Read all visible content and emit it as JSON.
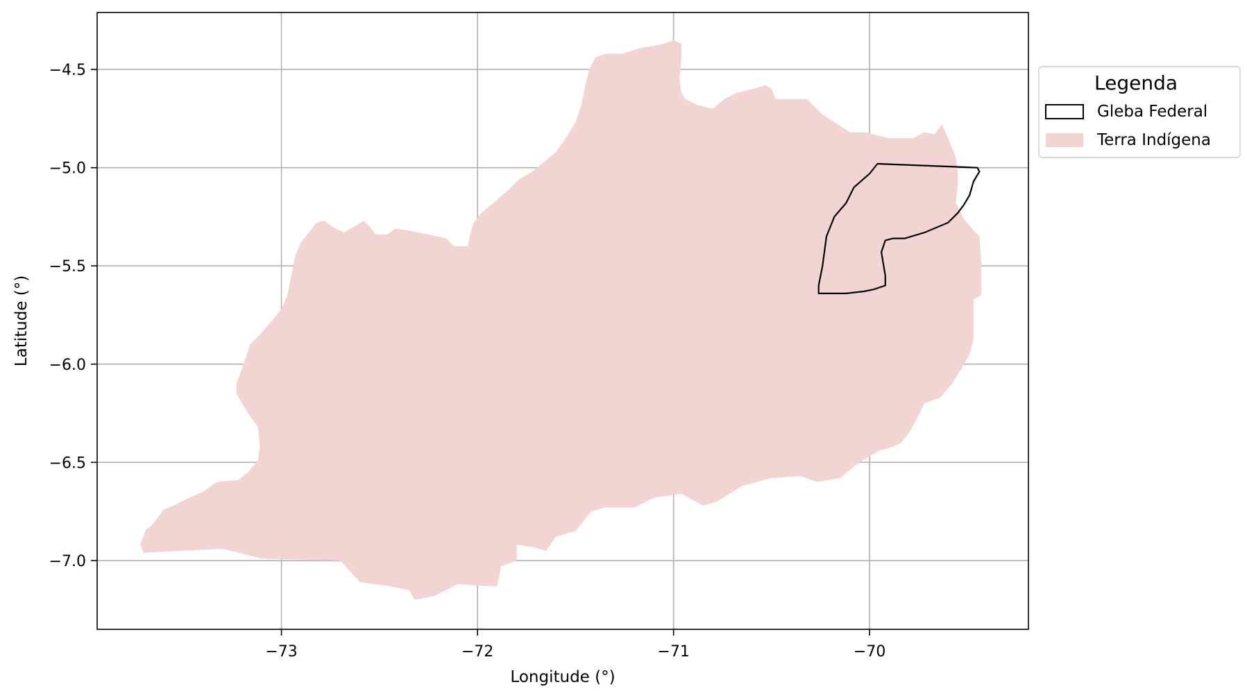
{
  "chart_data": {
    "type": "map",
    "xlabel": "Longitude (°)",
    "ylabel": "Latitude (°)",
    "xlim": [
      -73.94,
      -69.19
    ],
    "ylim": [
      -7.35,
      -4.21
    ],
    "grid": true,
    "x_ticks": [
      {
        "value": -73,
        "label": "−73"
      },
      {
        "value": -72,
        "label": "−72"
      },
      {
        "value": -71,
        "label": "−71"
      },
      {
        "value": -70,
        "label": "−70"
      }
    ],
    "y_ticks": [
      {
        "value": -4.5,
        "label": "−4.5"
      },
      {
        "value": -5.0,
        "label": "−5.0"
      },
      {
        "value": -5.5,
        "label": "−5.5"
      },
      {
        "value": -6.0,
        "label": "−6.0"
      },
      {
        "value": -6.5,
        "label": "−6.5"
      },
      {
        "value": -7.0,
        "label": "−7.0"
      }
    ],
    "legend": {
      "title": "Legenda",
      "placement": "outside-top-right",
      "entries": [
        {
          "label": "Gleba Federal",
          "style": "outline",
          "color": "#000000"
        },
        {
          "label": "Terra Indígena",
          "style": "fill",
          "color": "#f2d4d3"
        }
      ]
    },
    "layers": [
      {
        "name": "Terra Indígena",
        "fill": "#f2d4d3",
        "stroke": "none",
        "coordinates": [
          [
            -73.7,
            -6.97
          ],
          [
            -73.72,
            -6.92
          ],
          [
            -73.69,
            -6.84
          ],
          [
            -73.66,
            -6.82
          ],
          [
            -73.6,
            -6.74
          ],
          [
            -73.55,
            -6.72
          ],
          [
            -73.47,
            -6.68
          ],
          [
            -73.4,
            -6.65
          ],
          [
            -73.33,
            -6.6
          ],
          [
            -73.22,
            -6.59
          ],
          [
            -73.17,
            -6.55
          ],
          [
            -73.12,
            -6.49
          ],
          [
            -73.11,
            -6.42
          ],
          [
            -73.12,
            -6.32
          ],
          [
            -73.17,
            -6.25
          ],
          [
            -73.2,
            -6.2
          ],
          [
            -73.23,
            -6.15
          ],
          [
            -73.23,
            -6.1
          ],
          [
            -73.2,
            -6.02
          ],
          [
            -73.16,
            -5.9
          ],
          [
            -73.1,
            -5.84
          ],
          [
            -73.05,
            -5.78
          ],
          [
            -73.0,
            -5.72
          ],
          [
            -72.97,
            -5.65
          ],
          [
            -72.95,
            -5.55
          ],
          [
            -72.93,
            -5.45
          ],
          [
            -72.9,
            -5.38
          ],
          [
            -72.86,
            -5.33
          ],
          [
            -72.82,
            -5.28
          ],
          [
            -72.78,
            -5.27
          ],
          [
            -72.74,
            -5.3
          ],
          [
            -72.68,
            -5.33
          ],
          [
            -72.63,
            -5.3
          ],
          [
            -72.58,
            -5.27
          ],
          [
            -72.55,
            -5.3
          ],
          [
            -72.52,
            -5.34
          ],
          [
            -72.46,
            -5.34
          ],
          [
            -72.42,
            -5.31
          ],
          [
            -72.35,
            -5.32
          ],
          [
            -72.25,
            -5.34
          ],
          [
            -72.16,
            -5.36
          ],
          [
            -72.12,
            -5.4
          ],
          [
            -72.05,
            -5.4
          ],
          [
            -72.04,
            -5.35
          ],
          [
            -72.02,
            -5.28
          ],
          [
            -71.98,
            -5.23
          ],
          [
            -71.92,
            -5.18
          ],
          [
            -71.85,
            -5.12
          ],
          [
            -71.79,
            -5.06
          ],
          [
            -71.72,
            -5.02
          ],
          [
            -71.66,
            -4.97
          ],
          [
            -71.6,
            -4.92
          ],
          [
            -71.55,
            -4.85
          ],
          [
            -71.5,
            -4.77
          ],
          [
            -71.47,
            -4.68
          ],
          [
            -71.45,
            -4.58
          ],
          [
            -71.43,
            -4.5
          ],
          [
            -71.4,
            -4.44
          ],
          [
            -71.35,
            -4.42
          ],
          [
            -71.26,
            -4.42
          ],
          [
            -71.17,
            -4.39
          ],
          [
            -71.1,
            -4.38
          ],
          [
            -71.05,
            -4.37
          ],
          [
            -71.0,
            -4.35
          ],
          [
            -70.96,
            -4.37
          ],
          [
            -70.96,
            -4.45
          ],
          [
            -70.97,
            -4.55
          ],
          [
            -70.96,
            -4.62
          ],
          [
            -70.94,
            -4.65
          ],
          [
            -70.88,
            -4.68
          ],
          [
            -70.8,
            -4.7
          ],
          [
            -70.74,
            -4.65
          ],
          [
            -70.68,
            -4.62
          ],
          [
            -70.6,
            -4.6
          ],
          [
            -70.53,
            -4.58
          ],
          [
            -70.5,
            -4.6
          ],
          [
            -70.48,
            -4.65
          ],
          [
            -70.42,
            -4.65
          ],
          [
            -70.32,
            -4.65
          ],
          [
            -70.24,
            -4.73
          ],
          [
            -70.1,
            -4.82
          ],
          [
            -70.02,
            -4.82
          ],
          [
            -69.9,
            -4.85
          ],
          [
            -69.78,
            -4.85
          ],
          [
            -69.72,
            -4.82
          ],
          [
            -69.67,
            -4.83
          ],
          [
            -69.63,
            -4.78
          ],
          [
            -69.6,
            -4.85
          ],
          [
            -69.56,
            -4.95
          ],
          [
            -69.55,
            -5.02
          ],
          [
            -69.55,
            -5.08
          ],
          [
            -69.56,
            -5.18
          ],
          [
            -69.52,
            -5.26
          ],
          [
            -69.47,
            -5.32
          ],
          [
            -69.44,
            -5.35
          ],
          [
            -69.43,
            -5.48
          ],
          [
            -69.43,
            -5.65
          ],
          [
            -69.47,
            -5.67
          ],
          [
            -69.47,
            -5.87
          ],
          [
            -69.49,
            -5.95
          ],
          [
            -69.53,
            -6.02
          ],
          [
            -69.58,
            -6.1
          ],
          [
            -69.64,
            -6.17
          ],
          [
            -69.72,
            -6.2
          ],
          [
            -69.77,
            -6.3
          ],
          [
            -69.8,
            -6.35
          ],
          [
            -69.84,
            -6.4
          ],
          [
            -69.88,
            -6.42
          ],
          [
            -69.95,
            -6.44
          ],
          [
            -70.02,
            -6.48
          ],
          [
            -70.08,
            -6.52
          ],
          [
            -70.15,
            -6.58
          ],
          [
            -70.27,
            -6.6
          ],
          [
            -70.35,
            -6.57
          ],
          [
            -70.5,
            -6.58
          ],
          [
            -70.65,
            -6.62
          ],
          [
            -70.78,
            -6.7
          ],
          [
            -70.85,
            -6.72
          ],
          [
            -70.96,
            -6.66
          ],
          [
            -71.1,
            -6.68
          ],
          [
            -71.2,
            -6.73
          ],
          [
            -71.35,
            -6.73
          ],
          [
            -71.42,
            -6.75
          ],
          [
            -71.5,
            -6.85
          ],
          [
            -71.6,
            -6.88
          ],
          [
            -71.65,
            -6.95
          ],
          [
            -71.72,
            -6.93
          ],
          [
            -71.8,
            -6.92
          ],
          [
            -71.8,
            -7.0
          ],
          [
            -71.88,
            -7.03
          ],
          [
            -71.9,
            -7.13
          ],
          [
            -71.95,
            -7.13
          ],
          [
            -72.1,
            -7.12
          ],
          [
            -72.22,
            -7.18
          ],
          [
            -72.32,
            -7.2
          ],
          [
            -72.35,
            -7.15
          ],
          [
            -72.45,
            -7.13
          ],
          [
            -72.6,
            -7.11
          ],
          [
            -72.7,
            -7.0
          ],
          [
            -73.1,
            -6.99
          ],
          [
            -73.3,
            -6.94
          ],
          [
            -73.7,
            -6.96
          ]
        ]
      },
      {
        "name": "Gleba Federal",
        "fill": "none",
        "stroke": "#000000",
        "coordinates": [
          [
            -70.26,
            -5.64
          ],
          [
            -70.26,
            -5.6
          ],
          [
            -70.25,
            -5.55
          ],
          [
            -70.24,
            -5.5
          ],
          [
            -70.22,
            -5.35
          ],
          [
            -70.18,
            -5.25
          ],
          [
            -70.12,
            -5.18
          ],
          [
            -70.08,
            -5.1
          ],
          [
            -70.0,
            -5.03
          ],
          [
            -69.96,
            -4.98
          ],
          [
            -69.45,
            -5.0
          ],
          [
            -69.44,
            -5.02
          ],
          [
            -69.47,
            -5.07
          ],
          [
            -69.49,
            -5.14
          ],
          [
            -69.52,
            -5.19
          ],
          [
            -69.55,
            -5.23
          ],
          [
            -69.6,
            -5.28
          ],
          [
            -69.72,
            -5.33
          ],
          [
            -69.82,
            -5.36
          ],
          [
            -69.88,
            -5.36
          ],
          [
            -69.92,
            -5.37
          ],
          [
            -69.94,
            -5.43
          ],
          [
            -69.92,
            -5.55
          ],
          [
            -69.92,
            -5.6
          ],
          [
            -69.98,
            -5.62
          ],
          [
            -70.03,
            -5.63
          ],
          [
            -70.12,
            -5.64
          ],
          [
            -70.26,
            -5.64
          ]
        ]
      }
    ]
  }
}
